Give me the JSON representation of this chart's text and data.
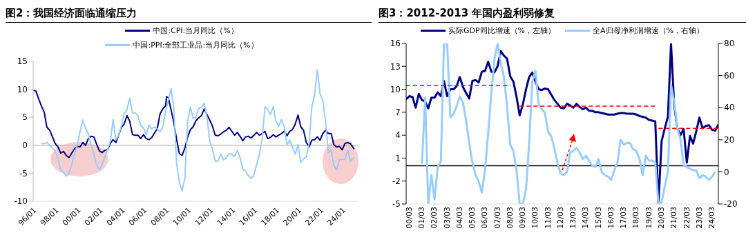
{
  "chart_data": [
    {
      "type": "line",
      "title": "图2：我国经济面临通缩压力",
      "legend": "top",
      "ylim": [
        -10,
        15
      ],
      "yticks": [
        -10,
        -5,
        0,
        5,
        10,
        15
      ],
      "xlim": [
        "1996-01",
        "2025-06"
      ],
      "xticks": [
        {
          "value": "1996-01",
          "label": "96/01"
        },
        {
          "value": "1998-01",
          "label": "98/01"
        },
        {
          "value": "2000-01",
          "label": "00/01"
        },
        {
          "value": "2002-01",
          "label": "02/01"
        },
        {
          "value": "2004-01",
          "label": "04/01"
        },
        {
          "value": "2006-01",
          "label": "06/01"
        },
        {
          "value": "2008-01",
          "label": "08/01"
        },
        {
          "value": "2010-01",
          "label": "10/01"
        },
        {
          "value": "2012-01",
          "label": "12/01"
        },
        {
          "value": "2014-01",
          "label": "14/01"
        },
        {
          "value": "2016-01",
          "label": "16/01"
        },
        {
          "value": "2018-01",
          "label": "18/01"
        },
        {
          "value": "2020-01",
          "label": "20/01"
        },
        {
          "value": "2022-01",
          "label": "22/01"
        },
        {
          "value": "2024-01",
          "label": "24/01"
        }
      ],
      "ref_lines": [
        {
          "axis": "y",
          "value": 0,
          "color": "#bfbfbf"
        }
      ],
      "series": [
        {
          "name": "中国:CPI:当月同比（%）",
          "color": "#000080",
          "x": [
            "1996-01",
            "1996-04",
            "1996-07",
            "1996-10",
            "1997-01",
            "1997-04",
            "1997-07",
            "1997-10",
            "1998-01",
            "1998-04",
            "1998-07",
            "1998-10",
            "1999-01",
            "1999-04",
            "1999-07",
            "1999-10",
            "2000-01",
            "2000-04",
            "2000-07",
            "2000-10",
            "2001-01",
            "2001-04",
            "2001-07",
            "2001-10",
            "2002-01",
            "2002-04",
            "2002-07",
            "2002-10",
            "2003-01",
            "2003-04",
            "2003-07",
            "2003-10",
            "2004-01",
            "2004-04",
            "2004-07",
            "2004-10",
            "2005-01",
            "2005-04",
            "2005-07",
            "2005-10",
            "2006-01",
            "2006-04",
            "2006-07",
            "2006-10",
            "2007-01",
            "2007-04",
            "2007-07",
            "2007-10",
            "2008-01",
            "2008-02",
            "2008-04",
            "2008-07",
            "2008-10",
            "2009-01",
            "2009-04",
            "2009-07",
            "2009-10",
            "2010-01",
            "2010-04",
            "2010-07",
            "2010-10",
            "2011-01",
            "2011-04",
            "2011-07",
            "2011-10",
            "2012-01",
            "2012-04",
            "2012-07",
            "2012-10",
            "2013-01",
            "2013-04",
            "2013-07",
            "2013-10",
            "2014-01",
            "2014-04",
            "2014-07",
            "2014-10",
            "2015-01",
            "2015-04",
            "2015-07",
            "2015-10",
            "2016-01",
            "2016-04",
            "2016-07",
            "2016-10",
            "2017-01",
            "2017-04",
            "2017-07",
            "2017-10",
            "2018-01",
            "2018-04",
            "2018-07",
            "2018-10",
            "2019-01",
            "2019-04",
            "2019-07",
            "2019-10",
            "2020-01",
            "2020-04",
            "2020-07",
            "2020-10",
            "2021-01",
            "2021-04",
            "2021-07",
            "2021-10",
            "2022-01",
            "2022-04",
            "2022-07",
            "2022-10",
            "2023-01",
            "2023-04",
            "2023-07",
            "2023-10",
            "2024-01",
            "2024-04",
            "2024-07",
            "2024-10",
            "2025-02"
          ],
          "values": [
            9.8,
            9.7,
            8.3,
            7.0,
            5.9,
            3.2,
            2.7,
            1.5,
            0.3,
            -0.3,
            -1.4,
            -1.1,
            -1.8,
            -2.2,
            -1.4,
            -0.6,
            -0.2,
            -0.3,
            0.5,
            0.0,
            1.2,
            1.6,
            1.5,
            0.2,
            -1.0,
            -1.3,
            -0.9,
            -0.8,
            0.4,
            1.0,
            0.5,
            1.8,
            3.2,
            3.8,
            5.3,
            4.3,
            1.9,
            1.8,
            1.8,
            1.2,
            1.9,
            1.2,
            1.0,
            1.4,
            2.2,
            3.0,
            5.6,
            6.5,
            7.1,
            8.7,
            8.5,
            6.3,
            4.0,
            1.0,
            -1.5,
            -1.8,
            -0.5,
            1.5,
            2.8,
            3.3,
            4.4,
            4.9,
            5.3,
            6.5,
            5.5,
            4.5,
            3.4,
            1.8,
            1.7,
            2.0,
            2.4,
            2.7,
            3.2,
            2.5,
            1.8,
            2.3,
            1.6,
            0.8,
            1.5,
            1.6,
            1.3,
            1.8,
            2.3,
            1.8,
            2.1,
            2.5,
            1.2,
            1.4,
            1.9,
            1.5,
            1.8,
            2.1,
            2.5,
            1.7,
            2.5,
            2.8,
            3.8,
            5.4,
            3.3,
            2.7,
            0.5,
            -0.3,
            0.9,
            1.0,
            1.5,
            0.9,
            2.1,
            2.7,
            2.1,
            2.1,
            0.1,
            -0.3,
            -0.2,
            -0.8,
            0.3,
            0.5,
            0.3,
            -0.7
          ]
        },
        {
          "name": "中国:PPI:全部工业品:当月同比（%）",
          "color": "#99ccff",
          "x": [
            "1996-10",
            "1997-01",
            "1997-04",
            "1997-07",
            "1997-10",
            "1998-01",
            "1998-04",
            "1998-07",
            "1998-10",
            "1999-01",
            "1999-04",
            "1999-07",
            "1999-10",
            "2000-01",
            "2000-04",
            "2000-07",
            "2000-10",
            "2001-01",
            "2001-04",
            "2001-07",
            "2001-10",
            "2002-01",
            "2002-04",
            "2002-07",
            "2002-10",
            "2003-01",
            "2003-04",
            "2003-07",
            "2003-10",
            "2004-01",
            "2004-04",
            "2004-07",
            "2004-10",
            "2005-01",
            "2005-04",
            "2005-07",
            "2005-10",
            "2006-01",
            "2006-04",
            "2006-07",
            "2006-10",
            "2007-01",
            "2007-04",
            "2007-07",
            "2007-10",
            "2008-01",
            "2008-04",
            "2008-07",
            "2008-10",
            "2009-01",
            "2009-04",
            "2009-07",
            "2009-10",
            "2010-01",
            "2010-04",
            "2010-07",
            "2010-10",
            "2011-01",
            "2011-04",
            "2011-07",
            "2011-10",
            "2012-01",
            "2012-04",
            "2012-07",
            "2012-10",
            "2013-01",
            "2013-04",
            "2013-07",
            "2013-10",
            "2014-01",
            "2014-04",
            "2014-07",
            "2014-10",
            "2015-01",
            "2015-04",
            "2015-07",
            "2015-10",
            "2016-01",
            "2016-04",
            "2016-07",
            "2016-10",
            "2017-01",
            "2017-04",
            "2017-07",
            "2017-10",
            "2018-01",
            "2018-04",
            "2018-07",
            "2018-10",
            "2019-01",
            "2019-04",
            "2019-07",
            "2019-10",
            "2020-01",
            "2020-04",
            "2020-07",
            "2020-10",
            "2021-01",
            "2021-04",
            "2021-07",
            "2021-10",
            "2022-01",
            "2022-04",
            "2022-07",
            "2022-10",
            "2023-01",
            "2023-04",
            "2023-07",
            "2023-10",
            "2024-01",
            "2024-04",
            "2024-07",
            "2024-10",
            "2025-02"
          ],
          "values": [
            0.3,
            0.3,
            0.5,
            0.0,
            -0.5,
            -1.0,
            -2.5,
            -4.5,
            -4.8,
            -5.5,
            -5.0,
            -3.5,
            -1.5,
            0.0,
            2.5,
            4.5,
            3.0,
            2.0,
            0.0,
            -1.5,
            -3.5,
            -4.3,
            -3.5,
            -2.0,
            -0.7,
            0.8,
            4.6,
            1.0,
            1.8,
            3.5,
            5.7,
            6.4,
            8.4,
            5.8,
            5.8,
            5.2,
            3.5,
            3.1,
            1.9,
            3.6,
            2.9,
            3.3,
            2.9,
            2.4,
            3.2,
            6.1,
            8.1,
            10.1,
            6.6,
            -3.3,
            -6.6,
            -8.2,
            -5.8,
            4.3,
            6.8,
            4.8,
            5.0,
            6.6,
            6.8,
            7.5,
            5.0,
            0.7,
            -0.7,
            -2.9,
            -2.8,
            -1.6,
            -2.6,
            -2.3,
            -1.5,
            -1.6,
            -2.0,
            -0.9,
            -2.2,
            -4.3,
            -4.6,
            -5.4,
            -5.9,
            -5.3,
            -3.4,
            -1.7,
            1.2,
            6.9,
            6.4,
            5.5,
            6.9,
            4.3,
            3.4,
            4.6,
            3.3,
            0.1,
            0.9,
            -0.3,
            -1.6,
            0.1,
            -3.1,
            -2.4,
            -2.1,
            0.3,
            6.8,
            9.0,
            13.5,
            9.1,
            8.0,
            4.2,
            -1.3,
            -0.8,
            -3.6,
            -4.4,
            -2.6,
            -2.5,
            -2.5,
            -0.8,
            -2.9,
            -2.2
          ]
        }
      ]
    },
    {
      "type": "line",
      "title": "图3：2012-2013 年国内盈利弱修复",
      "legend": "top",
      "ylim": [
        -5,
        16
      ],
      "yticks": [
        -5,
        -2,
        1,
        4,
        7,
        10,
        13,
        16
      ],
      "y2lim": [
        -20,
        80
      ],
      "y2ticks": [
        -20,
        0,
        20,
        40,
        60,
        80
      ],
      "xlim": [
        "2000-03",
        "2024-12"
      ],
      "xticks": [
        {
          "value": "2000-03",
          "label": "00/03"
        },
        {
          "value": "2001-03",
          "label": "01/03"
        },
        {
          "value": "2002-03",
          "label": "02/03"
        },
        {
          "value": "2003-03",
          "label": "03/03"
        },
        {
          "value": "2004-03",
          "label": "04/03"
        },
        {
          "value": "2005-03",
          "label": "05/03"
        },
        {
          "value": "2006-03",
          "label": "06/03"
        },
        {
          "value": "2007-03",
          "label": "07/03"
        },
        {
          "value": "2008-03",
          "label": "08/03"
        },
        {
          "value": "2009-03",
          "label": "09/03"
        },
        {
          "value": "2010-03",
          "label": "10/03"
        },
        {
          "value": "2011-03",
          "label": "11/03"
        },
        {
          "value": "2012-03",
          "label": "12/03"
        },
        {
          "value": "2013-03",
          "label": "13/03"
        },
        {
          "value": "2014-03",
          "label": "14/03"
        },
        {
          "value": "2015-03",
          "label": "15/03"
        },
        {
          "value": "2016-03",
          "label": "16/03"
        },
        {
          "value": "2017-03",
          "label": "17/03"
        },
        {
          "value": "2018-03",
          "label": "18/03"
        },
        {
          "value": "2019-03",
          "label": "19/03"
        },
        {
          "value": "2020-03",
          "label": "20/03"
        },
        {
          "value": "2021-03",
          "label": "21/03"
        },
        {
          "value": "2022-03",
          "label": "22/03"
        },
        {
          "value": "2023-03",
          "label": "23/03"
        },
        {
          "value": "2024-03",
          "label": "24/03"
        }
      ],
      "ref_lines": [
        {
          "axis": "y",
          "value": 0,
          "color": "#000000"
        }
      ],
      "series": [
        {
          "name": "实际GDP同比增速（%，左轴）",
          "color": "#000080",
          "x": [
            "2000-03",
            "2000-06",
            "2000-09",
            "2000-12",
            "2001-03",
            "2001-06",
            "2001-09",
            "2001-12",
            "2002-03",
            "2002-06",
            "2002-09",
            "2002-12",
            "2003-03",
            "2003-06",
            "2003-09",
            "2003-12",
            "2004-03",
            "2004-06",
            "2004-09",
            "2004-12",
            "2005-03",
            "2005-06",
            "2005-09",
            "2005-12",
            "2006-03",
            "2006-06",
            "2006-09",
            "2006-12",
            "2007-03",
            "2007-06",
            "2007-09",
            "2007-12",
            "2008-03",
            "2008-06",
            "2008-09",
            "2008-12",
            "2009-03",
            "2009-06",
            "2009-09",
            "2009-12",
            "2010-03",
            "2010-06",
            "2010-09",
            "2010-12",
            "2011-03",
            "2011-06",
            "2011-09",
            "2011-12",
            "2012-03",
            "2012-06",
            "2012-09",
            "2012-12",
            "2013-03",
            "2013-06",
            "2013-09",
            "2013-12",
            "2014-03",
            "2014-06",
            "2014-09",
            "2014-12",
            "2015-03",
            "2015-06",
            "2015-09",
            "2015-12",
            "2016-03",
            "2016-06",
            "2016-09",
            "2016-12",
            "2017-03",
            "2017-06",
            "2017-09",
            "2017-12",
            "2018-03",
            "2018-06",
            "2018-09",
            "2018-12",
            "2019-03",
            "2019-06",
            "2019-09",
            "2019-12",
            "2020-03",
            "2020-06",
            "2020-09",
            "2020-12",
            "2021-03",
            "2021-06",
            "2021-09",
            "2021-12",
            "2022-03",
            "2022-06",
            "2022-09",
            "2022-12",
            "2023-03",
            "2023-06",
            "2023-09",
            "2023-12",
            "2024-03",
            "2024-06",
            "2024-09",
            "2024-12"
          ],
          "values": [
            8.7,
            9.1,
            9.0,
            7.6,
            9.4,
            8.6,
            8.4,
            7.5,
            8.9,
            8.9,
            9.6,
            9.1,
            11.1,
            9.1,
            10.0,
            10.0,
            10.4,
            11.6,
            10.3,
            9.5,
            8.8,
            11.1,
            11.2,
            10.9,
            12.3,
            12.4,
            13.6,
            12.3,
            12.2,
            13.0,
            15.0,
            14.4,
            14.0,
            11.7,
            11.0,
            9.0,
            6.6,
            8.0,
            10.0,
            11.6,
            12.2,
            11.0,
            10.0,
            9.9,
            10.1,
            10.0,
            9.3,
            8.6,
            8.1,
            7.6,
            7.5,
            8.1,
            7.9,
            7.6,
            8.1,
            7.7,
            7.4,
            7.6,
            7.2,
            7.2,
            7.0,
            7.0,
            6.9,
            6.8,
            6.7,
            6.7,
            6.7,
            6.8,
            6.9,
            6.9,
            6.8,
            6.8,
            6.8,
            6.7,
            6.5,
            6.4,
            6.3,
            6.0,
            5.9,
            5.8,
            -5.0,
            3.2,
            4.9,
            6.4,
            16.0,
            7.9,
            4.9,
            4.0,
            4.8,
            0.4,
            3.9,
            2.9,
            4.5,
            6.3,
            4.9,
            5.2,
            5.3,
            4.7,
            4.6,
            5.4
          ]
        },
        {
          "name": "全A归母净利润增速（%，右轴）",
          "color": "#99ccff",
          "axis": "y2",
          "x": [
            "2001-06",
            "2001-09",
            "2001-12",
            "2002-03",
            "2002-06",
            "2002-09",
            "2002-12",
            "2003-03",
            "2003-06",
            "2003-09",
            "2003-12",
            "2004-03",
            "2004-06",
            "2004-09",
            "2004-12",
            "2005-03",
            "2005-06",
            "2005-09",
            "2005-12",
            "2006-03",
            "2006-06",
            "2006-09",
            "2006-12",
            "2007-03",
            "2007-06",
            "2007-09",
            "2007-12",
            "2008-03",
            "2008-06",
            "2008-09",
            "2008-12",
            "2009-03",
            "2009-06",
            "2009-09",
            "2009-12",
            "2010-03",
            "2010-06",
            "2010-09",
            "2010-12",
            "2011-03",
            "2011-06",
            "2011-09",
            "2011-12",
            "2012-03",
            "2012-06",
            "2012-09",
            "2012-12",
            "2013-03",
            "2013-06",
            "2013-09",
            "2013-12",
            "2014-03",
            "2014-06",
            "2014-09",
            "2014-12",
            "2015-03",
            "2015-06",
            "2015-09",
            "2015-12",
            "2016-03",
            "2016-06",
            "2016-09",
            "2016-12",
            "2017-03",
            "2017-06",
            "2017-09",
            "2017-12",
            "2018-03",
            "2018-06",
            "2018-09",
            "2018-12",
            "2019-03",
            "2019-06",
            "2019-09",
            "2019-12",
            "2020-03",
            "2020-06",
            "2020-09",
            "2020-12",
            "2021-03",
            "2021-06",
            "2021-09",
            "2021-12",
            "2022-03",
            "2022-06",
            "2022-09",
            "2022-12",
            "2023-03",
            "2023-06",
            "2023-09",
            "2023-12",
            "2024-03",
            "2024-06",
            "2024-09"
          ],
          "values": [
            5,
            46,
            -20,
            -2,
            -17,
            3,
            6.5,
            80,
            80,
            34,
            36,
            41,
            47,
            43,
            32,
            18,
            6,
            -2,
            -6,
            -13,
            1,
            24,
            49,
            70,
            80,
            68,
            59,
            41,
            17,
            13,
            1,
            -20,
            -20,
            -11,
            18,
            56,
            63,
            42,
            39,
            37,
            25,
            22,
            15,
            5,
            -1,
            -2,
            0,
            12,
            13,
            15,
            12,
            8,
            10,
            7,
            4,
            3,
            8,
            0,
            -2,
            -3,
            -5,
            1,
            6,
            20,
            17,
            18,
            18,
            14,
            13,
            8,
            -2,
            10,
            7,
            7,
            6,
            -20,
            -19,
            -9,
            0,
            54,
            44,
            27,
            20,
            4,
            3,
            2,
            1,
            1,
            -4,
            -2,
            -3,
            -5,
            -3,
            0
          ]
        },
        {
          "type": "line",
          "color": "#ff0000",
          "line_style": "dashed",
          "x": [
            "2000-03",
            "2008-06"
          ],
          "values": [
            10.5,
            10.5
          ]
        },
        {
          "type": "line",
          "color": "#ff0000",
          "line_style": "dashed",
          "x": [
            "2009-03",
            "2019-12"
          ],
          "values": [
            7.8,
            7.8
          ]
        },
        {
          "type": "line",
          "color": "#ff0000",
          "line_style": "dashed",
          "x": [
            "2020-03",
            "2024-12"
          ],
          "values": [
            4.9,
            4.9
          ]
        }
      ]
    }
  ]
}
